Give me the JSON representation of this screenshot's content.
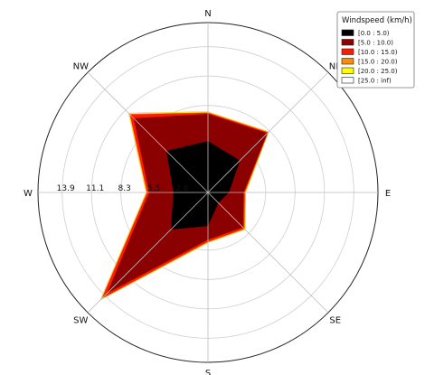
{
  "chart_data": {
    "type": "windrose",
    "directions": [
      "N",
      "NE",
      "E",
      "SE",
      "S",
      "SW",
      "W",
      "NW"
    ],
    "direction_angles_deg": [
      0,
      45,
      90,
      135,
      180,
      225,
      270,
      315
    ],
    "radial_ticks": [
      "2.8",
      "5.5",
      "8.3",
      "11.1",
      "13.9"
    ],
    "radial_tick_values": [
      2.8,
      5.5,
      8.3,
      11.1,
      13.9
    ],
    "rmax": 16.2,
    "grid": true,
    "legend": {
      "title": "Windspeed (km/h)",
      "placement": "top-right",
      "entries": [
        "[0.0 : 5.0)",
        "[5.0 : 10.0)",
        "[10.0 : 15.0)",
        "[15.0 : 20.0)",
        "[20.0 : 25.0)",
        "[25.0 : inf)"
      ]
    },
    "bins": [
      {
        "label": "[0.0 : 5.0)",
        "color": "#000000",
        "values": [
          4.9,
          4.3,
          2.0,
          1.4,
          3.2,
          5.0,
          3.3,
          5.6
        ]
      },
      {
        "label": "[5.0 : 10.0)",
        "color": "#8b0000",
        "values": [
          7.5,
          8.0,
          3.4,
          4.7,
          4.5,
          13.6,
          5.6,
          10.0
        ]
      },
      {
        "label": "[10.0 : 15.0)",
        "color": "#ff1a00",
        "values": [
          7.6,
          8.1,
          3.5,
          4.9,
          4.7,
          14.3,
          5.8,
          10.5
        ]
      },
      {
        "label": "[15.0 : 20.0)",
        "color": "#ff8c00",
        "values": [
          7.65,
          8.15,
          3.55,
          4.95,
          4.75,
          14.4,
          5.85,
          10.6
        ]
      },
      {
        "label": "[20.0 : 25.0)",
        "color": "#ffff00",
        "values": [
          7.7,
          8.2,
          3.6,
          5.0,
          4.8,
          14.5,
          5.9,
          10.7
        ]
      },
      {
        "label": "[25.0 : inf)",
        "color": "#ffffff",
        "values": [
          7.7,
          8.2,
          3.6,
          5.0,
          4.8,
          14.5,
          5.9,
          10.7
        ]
      }
    ]
  }
}
